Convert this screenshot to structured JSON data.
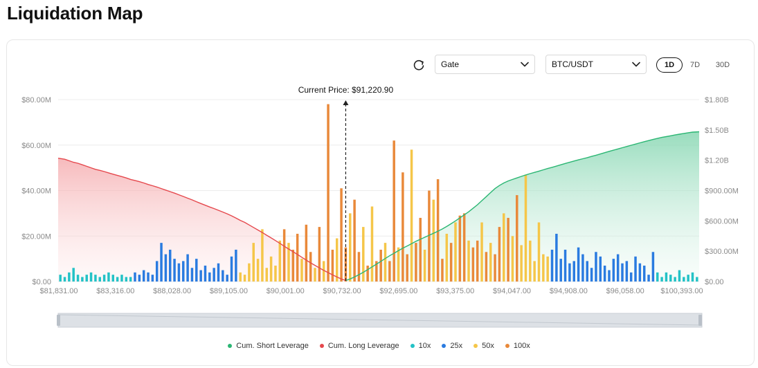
{
  "page": {
    "title": "Liquidation Map"
  },
  "toolbar": {
    "refresh_icon": "refresh-icon",
    "exchange": "Gate",
    "pair": "BTC/USDT",
    "ranges": [
      "1D",
      "7D",
      "30D"
    ],
    "active_range": "1D"
  },
  "colors": {
    "short_line": "#2bb673",
    "long_line": "#e5484d",
    "x10": "#23c2c6",
    "x25": "#2a7be0",
    "x50": "#f5c649",
    "x100": "#e9893a"
  },
  "chart_data": {
    "type": "bar",
    "annotation": "Current Price: $91,220.90",
    "current_price_index": 65,
    "x_tick_labels": [
      "$81,831.00",
      "$83,316.00",
      "$88,028.00",
      "$89,105.00",
      "$90,001.00",
      "$90,732.00",
      "$92,695.00",
      "$93,375.00",
      "$94,047.00",
      "$94,908.00",
      "$96,058.00",
      "$100,393.00"
    ],
    "y_left": {
      "ticks": [
        "$0.00",
        "$20.00M",
        "$40.00M",
        "$60.00M",
        "$80.00M"
      ],
      "ylim": [
        0,
        80
      ]
    },
    "y_right": {
      "ticks": [
        "$0.00",
        "$300.00M",
        "$600.00M",
        "$900.00M",
        "$1.20B",
        "$1.50B",
        "$1.80B"
      ],
      "ylim": [
        0,
        1800
      ]
    },
    "grid": true,
    "legend": [
      "Cum. Short Leverage",
      "Cum. Long Leverage",
      "10x",
      "25x",
      "50x",
      "100x"
    ],
    "bars": {
      "categories_count": 146,
      "leverage": [
        "10x",
        "10x",
        "10x",
        "10x",
        "10x",
        "10x",
        "10x",
        "10x",
        "10x",
        "10x",
        "10x",
        "10x",
        "10x",
        "10x",
        "10x",
        "10x",
        "10x",
        "25x",
        "25x",
        "25x",
        "25x",
        "25x",
        "25x",
        "25x",
        "25x",
        "25x",
        "25x",
        "25x",
        "25x",
        "25x",
        "25x",
        "25x",
        "25x",
        "25x",
        "25x",
        "25x",
        "25x",
        "25x",
        "25x",
        "25x",
        "25x",
        "50x",
        "50x",
        "50x",
        "50x",
        "50x",
        "50x",
        "50x",
        "50x",
        "50x",
        "50x",
        "100x",
        "50x",
        "100x",
        "100x",
        "50x",
        "100x",
        "100x",
        "50x",
        "100x",
        "50x",
        "100x",
        "100x",
        "50x",
        "100x",
        "100x",
        "50x",
        "100x",
        "100x",
        "50x",
        "100x",
        "50x",
        "100x",
        "100x",
        "50x",
        "100x",
        "100x",
        "50x",
        "100x",
        "100x",
        "50x",
        "100x",
        "100x",
        "50x",
        "100x",
        "50x",
        "100x",
        "100x",
        "50x",
        "100x",
        "50x",
        "100x",
        "100x",
        "50x",
        "100x",
        "100x",
        "50x",
        "100x",
        "50x",
        "100x",
        "100x",
        "50x",
        "100x",
        "50x",
        "100x",
        "50x",
        "50x",
        "50x",
        "50x",
        "50x",
        "50x",
        "50x",
        "25x",
        "25x",
        "25x",
        "25x",
        "25x",
        "25x",
        "25x",
        "25x",
        "25x",
        "25x",
        "25x",
        "25x",
        "25x",
        "25x",
        "25x",
        "25x",
        "25x",
        "25x",
        "25x",
        "25x",
        "25x",
        "25x",
        "25x",
        "25x",
        "10x",
        "10x",
        "10x",
        "10x",
        "10x",
        "10x",
        "10x",
        "10x",
        "10x",
        "10x",
        "10x",
        "10x"
      ],
      "values_millions": [
        3,
        2,
        4,
        6,
        3,
        2,
        3,
        4,
        3,
        2,
        3,
        4,
        3,
        2,
        3,
        2,
        2,
        4,
        3,
        5,
        4,
        3,
        9,
        17,
        12,
        14,
        10,
        8,
        9,
        12,
        6,
        10,
        5,
        7,
        4,
        6,
        8,
        5,
        3,
        11,
        14,
        4,
        3,
        8,
        17,
        10,
        23,
        6,
        11,
        7,
        18,
        23,
        17,
        14,
        21,
        10,
        25,
        13,
        6,
        24,
        9,
        78,
        14,
        19,
        41,
        15,
        30,
        36,
        13,
        24,
        7,
        33,
        9,
        14,
        17,
        9,
        62,
        15,
        48,
        12,
        58,
        17,
        28,
        14,
        40,
        36,
        45,
        10,
        21,
        17,
        26,
        29,
        30,
        18,
        15,
        18,
        26,
        13,
        17,
        12,
        24,
        30,
        28,
        20,
        38,
        16,
        47,
        18,
        9,
        26,
        12,
        11,
        14,
        21,
        10,
        14,
        8,
        9,
        15,
        12,
        9,
        6,
        13,
        11,
        7,
        5,
        10,
        12,
        8,
        9,
        4,
        11,
        8,
        7,
        3,
        13,
        4,
        2,
        4,
        3,
        2,
        5,
        2,
        3,
        4,
        2
      ]
    },
    "series": [
      {
        "name": "Cum. Long Leverage",
        "axis": "right",
        "index_range": [
          0,
          65
        ],
        "values_millions": [
          1220,
          1210,
          1195,
          1180,
          1170,
          1155,
          1140,
          1125,
          1110,
          1100,
          1088,
          1075,
          1062,
          1050,
          1038,
          1025,
          1010,
          1000,
          988,
          975,
          960,
          948,
          935,
          920,
          905,
          890,
          875,
          858,
          842,
          825,
          808,
          790,
          772,
          755,
          738,
          722,
          705,
          688,
          670,
          650,
          628,
          605,
          585,
          560,
          535,
          510,
          485,
          458,
          432,
          405,
          378,
          350,
          322,
          295,
          268,
          240,
          212,
          185,
          160,
          135,
          110,
          88,
          66,
          45,
          25,
          10
        ]
      },
      {
        "name": "Cum. Short Leverage",
        "axis": "right",
        "index_range": [
          65,
          145
        ],
        "values_millions": [
          10,
          25,
          45,
          68,
          92,
          118,
          145,
          172,
          200,
          228,
          255,
          280,
          305,
          330,
          352,
          375,
          398,
          418,
          438,
          458,
          478,
          498,
          520,
          545,
          572,
          600,
          630,
          660,
          690,
          725,
          760,
          800,
          840,
          880,
          920,
          950,
          975,
          995,
          1010,
          1025,
          1040,
          1055,
          1068,
          1080,
          1092,
          1105,
          1118,
          1130,
          1142,
          1155,
          1168,
          1180,
          1192,
          1204,
          1215,
          1226,
          1238,
          1250,
          1262,
          1275,
          1288,
          1300,
          1312,
          1324,
          1336,
          1348,
          1360,
          1372,
          1384,
          1395,
          1406,
          1416,
          1426,
          1434,
          1442,
          1450,
          1458,
          1465,
          1472,
          1478,
          1482
        ]
      }
    ],
    "range_slider": true
  }
}
